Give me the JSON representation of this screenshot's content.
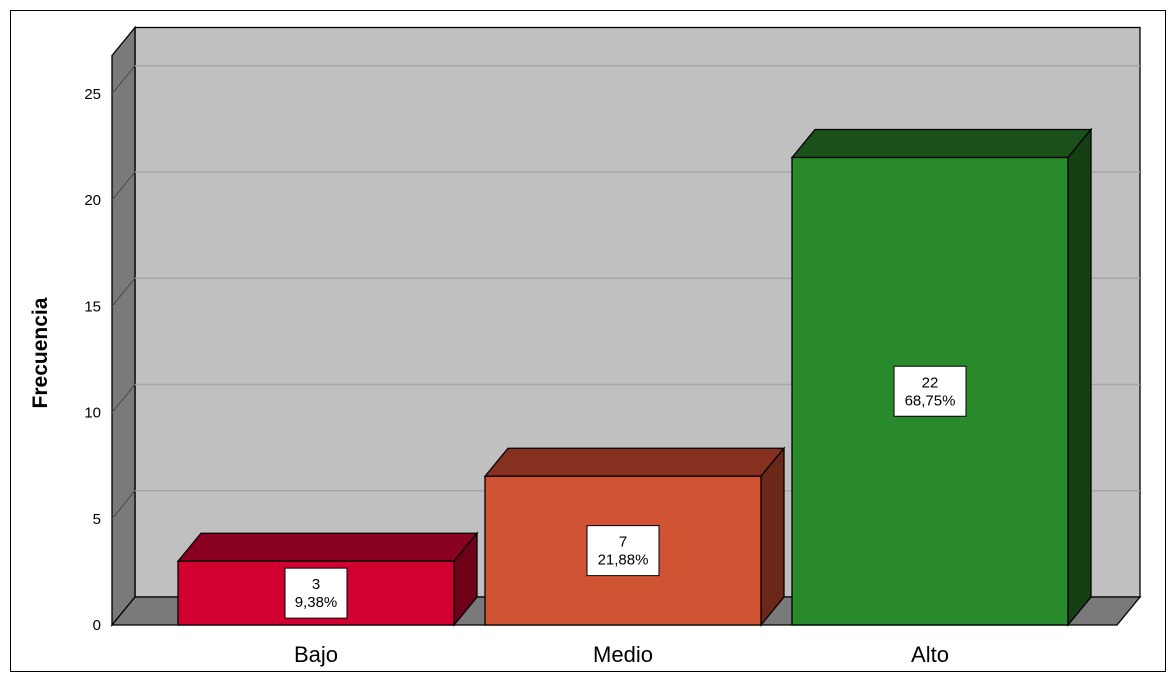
{
  "chart_data": {
    "type": "bar",
    "categories": [
      "Bajo",
      "Medio",
      "Alto"
    ],
    "values": [
      3,
      7,
      22
    ],
    "percent_labels": [
      "9,38%",
      "21,88%",
      "68,75%"
    ],
    "colors": [
      "#D20030",
      "#D05433",
      "#288A2B"
    ],
    "top_colors": [
      "#8A0020",
      "#86301F",
      "#1B501B"
    ],
    "side_colors": [
      "#6E0018",
      "#6B2718",
      "#144014"
    ],
    "ylabel": "Frecuencia",
    "xlabel": "",
    "title": "",
    "ylim": [
      0,
      25
    ],
    "yticks": [
      0,
      5,
      10,
      15,
      20,
      25
    ],
    "grid": true,
    "three_d": true
  }
}
